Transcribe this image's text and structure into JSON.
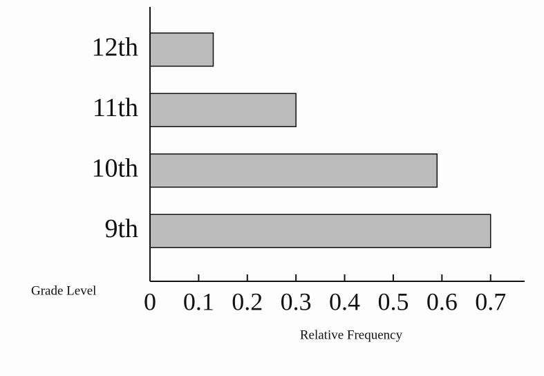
{
  "chart_data": {
    "type": "bar",
    "orientation": "horizontal",
    "y_label": "Grade Level",
    "x_label": "Relative Frequency",
    "categories": [
      "12th",
      "11th",
      "10th",
      "9th"
    ],
    "values": [
      0.13,
      0.3,
      0.59,
      0.7
    ],
    "color": "#bcbcbc",
    "xlim": [
      0,
      0.77
    ],
    "xticks": [
      0,
      0.1,
      0.2,
      0.3,
      0.4,
      0.5,
      0.6,
      0.7
    ],
    "grid": false
  }
}
